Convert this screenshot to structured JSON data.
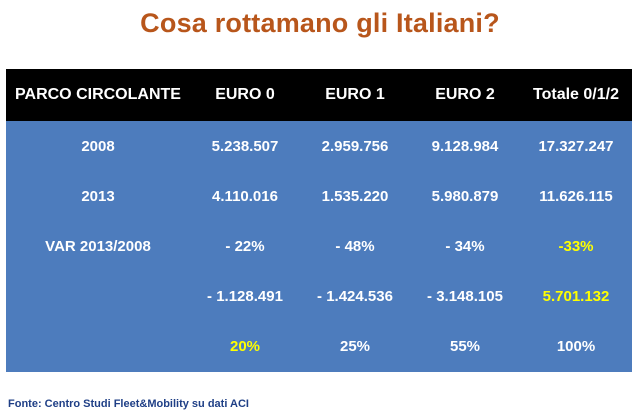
{
  "title": "Cosa rottamano gli Italiani?",
  "table": {
    "headers": [
      "PARCO CIRCOLANTE",
      "EURO 0",
      "EURO 1",
      "EURO 2",
      "Totale 0/1/2"
    ],
    "rows": [
      [
        "2008",
        "5.238.507",
        "2.959.756",
        "9.128.984",
        "17.327.247"
      ],
      [
        "2013",
        "4.110.016",
        "1.535.220",
        "5.980.879",
        "11.626.115"
      ],
      [
        "VAR 2013/2008",
        "- 22%",
        "- 48%",
        "- 34%",
        "-33%"
      ],
      [
        "",
        "- 1.128.491",
        "- 1.424.536",
        "- 3.148.105",
        "5.701.132"
      ],
      [
        "",
        "20%",
        "25%",
        "55%",
        "100%"
      ]
    ]
  },
  "highlight_color": "#ffff00",
  "source": "Fonte: Centro Studi Fleet&Mobility su dati ACI"
}
